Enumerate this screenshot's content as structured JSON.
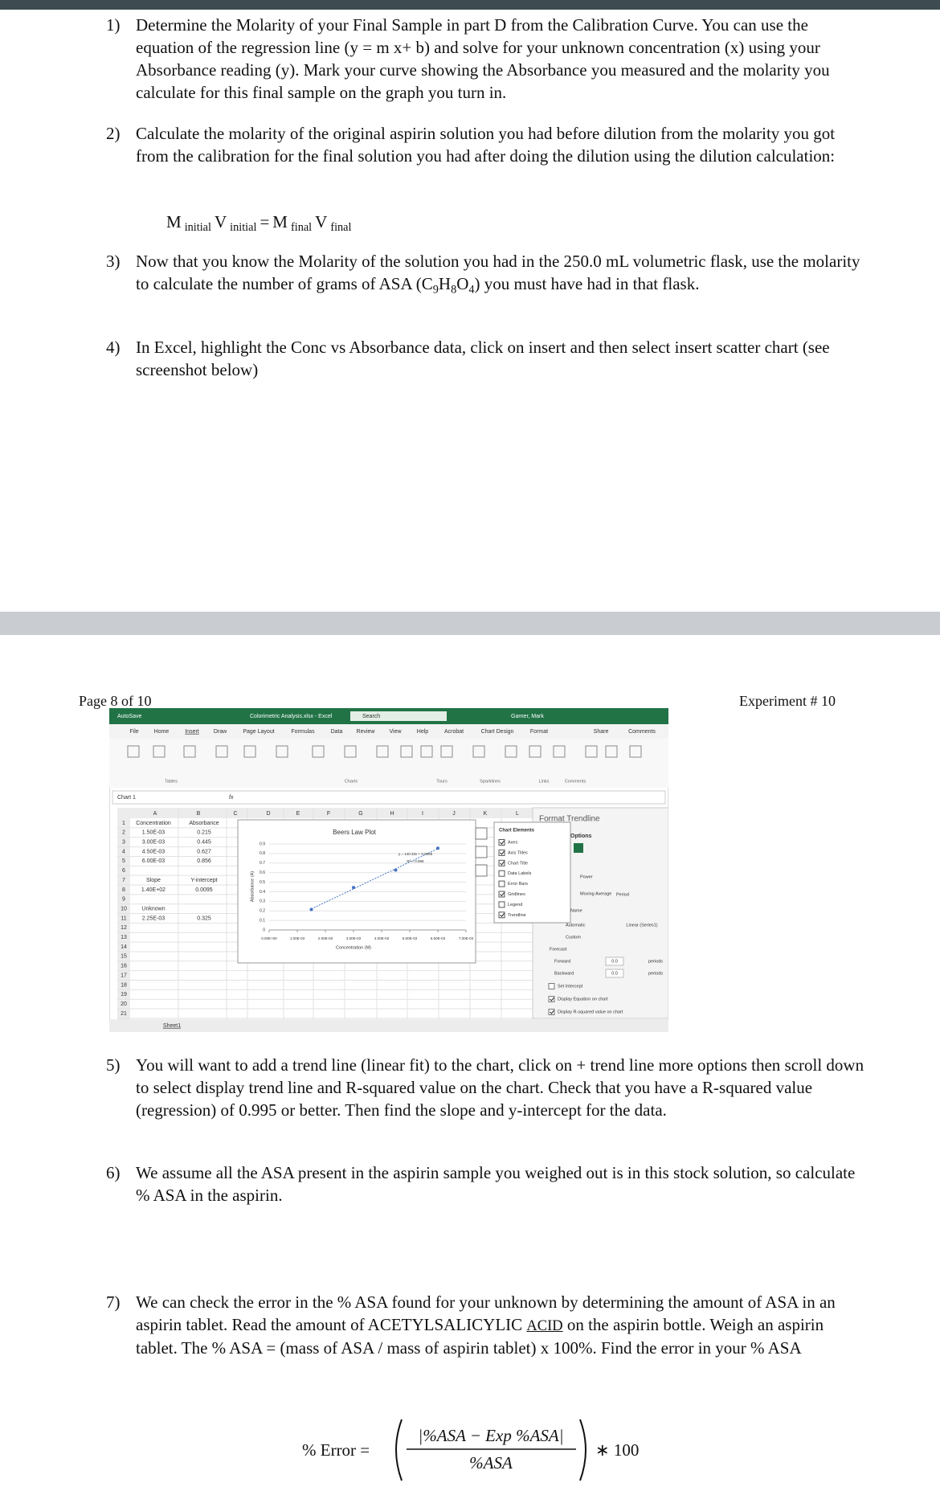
{
  "items": [
    {
      "number": "1)",
      "runs": [
        {
          "text": "Determine the Molarity of your Final Sample in part D from the Calibration Curve. You can use the equation of the regression line (y = m x+ b) and solve for your unknown concentration (x) using your Absorbance reading (y). Mark your curve showing the Absorbance you measured and the molarity you calculate for this final sample on the graph you turn in."
        }
      ]
    },
    {
      "number": "2)",
      "runs": [
        {
          "text": "Calculate the molarity of the original aspirin solution you had before dilution from the molarity you got from the calibration for the final solution you had after doing the dilution using the dilution calculation:"
        }
      ]
    },
    {
      "number": "3)",
      "runs": [
        {
          "text": "Now that you know the Molarity of the solution you had in the 250.0 mL volumetric flask, use the molarity to calculate the number of grams of ASA (C"
        },
        {
          "text": "9",
          "sub": true
        },
        {
          "text": "H"
        },
        {
          "text": "8",
          "sub": true
        },
        {
          "text": "O"
        },
        {
          "text": "4",
          "sub": true
        },
        {
          "text": ") you must have had in that flask."
        }
      ]
    },
    {
      "number": "4)",
      "runs": [
        {
          "text": "In Excel, highlight the Conc vs Absorbance data, click on insert and then select insert scatter chart (see screenshot below)"
        }
      ]
    },
    {
      "number": "5)",
      "runs": [
        {
          "text": "You will want to add a trend line (linear fit) to the chart, click on + trend line more options then scroll down to select display trend line and R-squared value on the chart. Check that you have a R-squared value (regression) of 0.995 or better. Then find the slope and y-intercept for the data."
        }
      ]
    },
    {
      "number": "6)",
      "runs": [
        {
          "text": "We assume all the ASA present in the aspirin sample you weighed out is in this stock solution, so calculate % ASA in the aspirin."
        }
      ]
    },
    {
      "number": "7)",
      "runs": [
        {
          "text": "We can check the error in the % ASA found for your unknown by determining the amount of ASA in an aspirin tablet. Read the amount of ACETYLSALICYLIC "
        },
        {
          "text": "ACID",
          "underline": true
        },
        {
          "text": " on the aspirin bottle. Weigh an aspirin tablet. The % ASA = (mass of ASA / mass of aspirin tablet) x 100%. Find the error in your % ASA"
        }
      ]
    }
  ],
  "dilution_equation": [
    {
      "text": "M"
    },
    {
      "text": "initial",
      "sub": true
    },
    {
      "text": "V"
    },
    {
      "text": "initial",
      "sub": true
    },
    {
      "text": "="
    },
    {
      "text": "M"
    },
    {
      "text": "final",
      "sub": true
    },
    {
      "text": "V"
    },
    {
      "text": "final",
      "sub": true
    }
  ],
  "page_header": {
    "page": "Page 8 of 10",
    "experiment": "Experiment # 10"
  },
  "error_formula": {
    "lhs": "% Error =",
    "numerator": "|%ASA − Exp %ASA|",
    "denominator": "%ASA",
    "rhs": "∗ 100"
  },
  "excel": {
    "title_bar": {
      "autosave": "AutoSave",
      "filename": "Colorimetric Analysis.xlsx - Excel",
      "search": "Search",
      "user": "Garner, Mark"
    },
    "tabs": [
      "File",
      "Home",
      "Insert",
      "Draw",
      "Page Layout",
      "Formulas",
      "Data",
      "Review",
      "View",
      "Help",
      "Acrobat",
      "Chart Design",
      "Format"
    ],
    "share": "Share",
    "comments": "Comments",
    "ribbon_groups": [
      "Tables",
      "Charts",
      "Tours",
      "Sparklines",
      "Links",
      "Comments"
    ],
    "name_box": "Chart 1",
    "fx": "fx",
    "columns": [
      "A",
      "B",
      "C",
      "D",
      "E",
      "F",
      "G",
      "H",
      "I",
      "J",
      "K",
      "L"
    ],
    "row_numbers": [
      1,
      2,
      3,
      4,
      5,
      6,
      7,
      8,
      9,
      10,
      11,
      12,
      13,
      14,
      15,
      16,
      17,
      18,
      19,
      20,
      21
    ],
    "grid": [
      [
        "Concentration",
        "Absorbance"
      ],
      [
        "1.50E-03",
        "0.215"
      ],
      [
        "3.00E-03",
        "0.445"
      ],
      [
        "4.50E-03",
        "0.627"
      ],
      [
        "6.00E-03",
        "0.856"
      ],
      [
        null,
        null
      ],
      [
        "Slope",
        "Y-intercept"
      ],
      [
        "1.40E+02",
        "0.0095"
      ],
      [
        null,
        null
      ],
      [
        "Unknown",
        null
      ],
      [
        "2.25E-03",
        "0.325"
      ],
      [
        null,
        null
      ],
      [
        null,
        null
      ],
      [
        null,
        null
      ],
      [
        null,
        null
      ],
      [
        null,
        null
      ],
      [
        null,
        null
      ],
      [
        null,
        null
      ],
      [
        null,
        null
      ],
      [
        null,
        null
      ],
      [
        null,
        null
      ]
    ],
    "chart": {
      "type": "scatter",
      "title": "Beers Law Plot",
      "x_label": "Concentration (M)",
      "y_label": "Absorbance (A)",
      "x": [
        0.0015,
        0.003,
        0.0045,
        0.006
      ],
      "y": [
        0.215,
        0.445,
        0.627,
        0.856
      ],
      "color": "#4472c4",
      "xlim": [
        0,
        0.007
      ],
      "ylim": [
        0,
        0.9
      ],
      "xticks": [
        {
          "value": 0,
          "label": "0.00E+00"
        },
        {
          "value": 0.001,
          "label": "1.00E-03"
        },
        {
          "value": 0.002,
          "label": "2.00E-03"
        },
        {
          "value": 0.003,
          "label": "3.00E-03"
        },
        {
          "value": 0.004,
          "label": "4.00E-03"
        },
        {
          "value": 0.005,
          "label": "5.00E-03"
        },
        {
          "value": 0.006,
          "label": "6.00E-03"
        },
        {
          "value": 0.007,
          "label": "7.00E-03"
        }
      ],
      "yticks": [
        0,
        0.1,
        0.2,
        0.3,
        0.4,
        0.5,
        0.6,
        0.7,
        0.8,
        0.9
      ],
      "grid": true,
      "trendline_equation": "y = 140.33x + 0.0095",
      "r_squared": "R² = 0.998"
    },
    "chart_elements": {
      "title": "Chart Elements",
      "items": [
        {
          "label": "Axes",
          "checked": true
        },
        {
          "label": "Axis Titles",
          "checked": true
        },
        {
          "label": "Chart Title",
          "checked": true
        },
        {
          "label": "Data Labels",
          "checked": false
        },
        {
          "label": "Error Bars",
          "checked": false
        },
        {
          "label": "Gridlines",
          "checked": true
        },
        {
          "label": "Legend",
          "checked": false
        },
        {
          "label": "Trendline",
          "checked": true
        }
      ]
    },
    "format_pane": {
      "title": "Format Trendline",
      "options": "Options",
      "power": "Power",
      "moving_average": "Moving Average",
      "period": "Period",
      "name": "Name",
      "automatic": "Automatic",
      "automatic_value": "Linear (Series1)",
      "custom": "Custom",
      "forecast": "Forecast",
      "forward": {
        "label": "Forward",
        "value": "0.0",
        "unit": "periods"
      },
      "backward": {
        "label": "Backward",
        "value": "0.0",
        "unit": "periods"
      },
      "set_intercept": {
        "label": "Set Intercept",
        "checked": false
      },
      "display_equation": {
        "label": "Display Equation on chart",
        "checked": true
      },
      "display_r2": {
        "label": "Display R-squared value on chart",
        "checked": true
      }
    },
    "sheet_tab": "Sheet1"
  }
}
